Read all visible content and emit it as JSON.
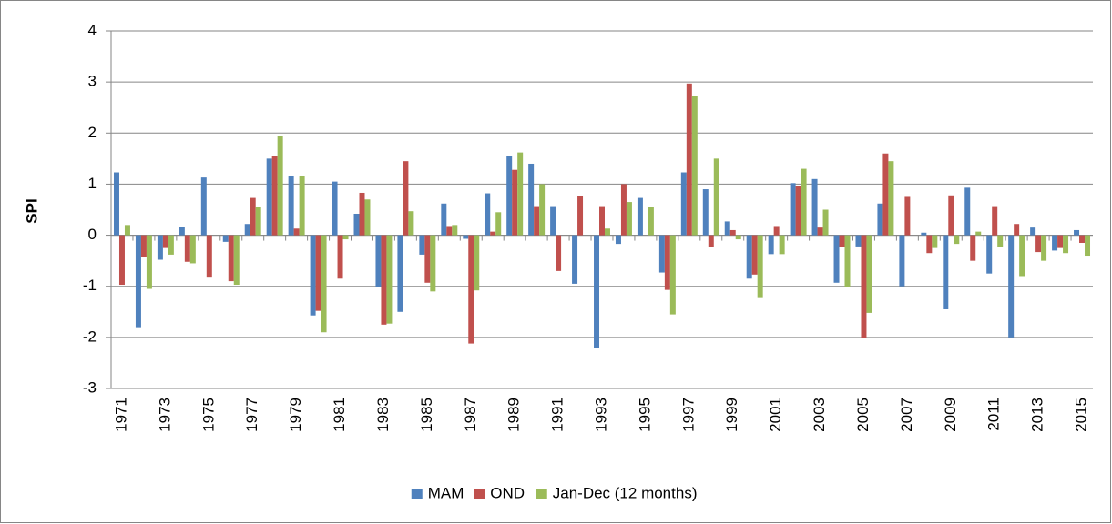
{
  "chart_data": {
    "type": "bar",
    "y_label": "SPI",
    "categories": [
      "1971",
      null,
      "1973",
      null,
      "1975",
      null,
      "1977",
      null,
      "1979",
      null,
      "1981",
      null,
      "1983",
      null,
      "1985",
      null,
      "1987",
      null,
      "1989",
      null,
      "1991",
      null,
      "1993",
      null,
      "1995",
      null,
      "1997",
      null,
      "1999",
      null,
      "2001",
      null,
      "2003",
      null,
      "2005",
      null,
      "2007",
      null,
      "2009",
      null,
      "2011",
      null,
      "2013",
      null,
      "2015"
    ],
    "series": [
      {
        "name": "MAM",
        "color": "#4f81bd",
        "values": [
          1.23,
          -1.8,
          -0.48,
          0.17,
          1.13,
          -0.13,
          0.22,
          1.5,
          1.15,
          -1.57,
          1.05,
          0.42,
          -1.02,
          -1.5,
          -0.38,
          0.62,
          -0.07,
          0.82,
          1.55,
          1.4,
          0.57,
          -0.95,
          -2.2,
          -0.17,
          0.73,
          -0.73,
          1.23,
          0.9,
          0.27,
          -0.85,
          -0.37,
          1.02,
          1.1,
          -0.93,
          -0.22,
          0.62,
          -1.0,
          0.05,
          -1.45,
          0.93,
          -0.75,
          -2.0,
          0.15,
          -0.3,
          0.1
        ]
      },
      {
        "name": "OND",
        "color": "#c0504d",
        "values": [
          -0.97,
          -0.42,
          -0.25,
          -0.52,
          -0.83,
          -0.9,
          0.73,
          1.55,
          0.13,
          -1.48,
          -0.85,
          0.83,
          -1.75,
          1.45,
          -0.93,
          0.18,
          -2.12,
          0.07,
          1.28,
          0.57,
          -0.7,
          0.77,
          0.57,
          1.0,
          0,
          -1.07,
          2.97,
          -0.23,
          0.1,
          -0.77,
          0.18,
          0.97,
          0.15,
          -0.23,
          -2.02,
          1.6,
          0.75,
          -0.35,
          0.78,
          -0.5,
          0.57,
          0.22,
          -0.33,
          -0.25,
          -0.15
        ]
      },
      {
        "name": "Jan-Dec (12 months)",
        "color": "#9bbb59",
        "values": [
          0.2,
          -1.05,
          -0.38,
          -0.55,
          0,
          -0.97,
          0.55,
          1.95,
          1.15,
          -1.9,
          -0.08,
          0.7,
          -1.73,
          0.47,
          -1.1,
          0.2,
          -1.08,
          0.45,
          1.62,
          1.0,
          0,
          0,
          0.13,
          0.65,
          0.55,
          -1.55,
          2.73,
          1.5,
          -0.08,
          -1.23,
          -0.37,
          1.3,
          0.5,
          -1.02,
          -1.52,
          1.45,
          0,
          -0.25,
          -0.17,
          0.07,
          -0.23,
          -0.8,
          -0.5,
          -0.35,
          -0.4
        ]
      }
    ],
    "ylim": [
      -3,
      4
    ],
    "yticks": [
      -3,
      -2,
      -1,
      0,
      1,
      2,
      3,
      4
    ],
    "grid": true,
    "legend": "bottom"
  }
}
